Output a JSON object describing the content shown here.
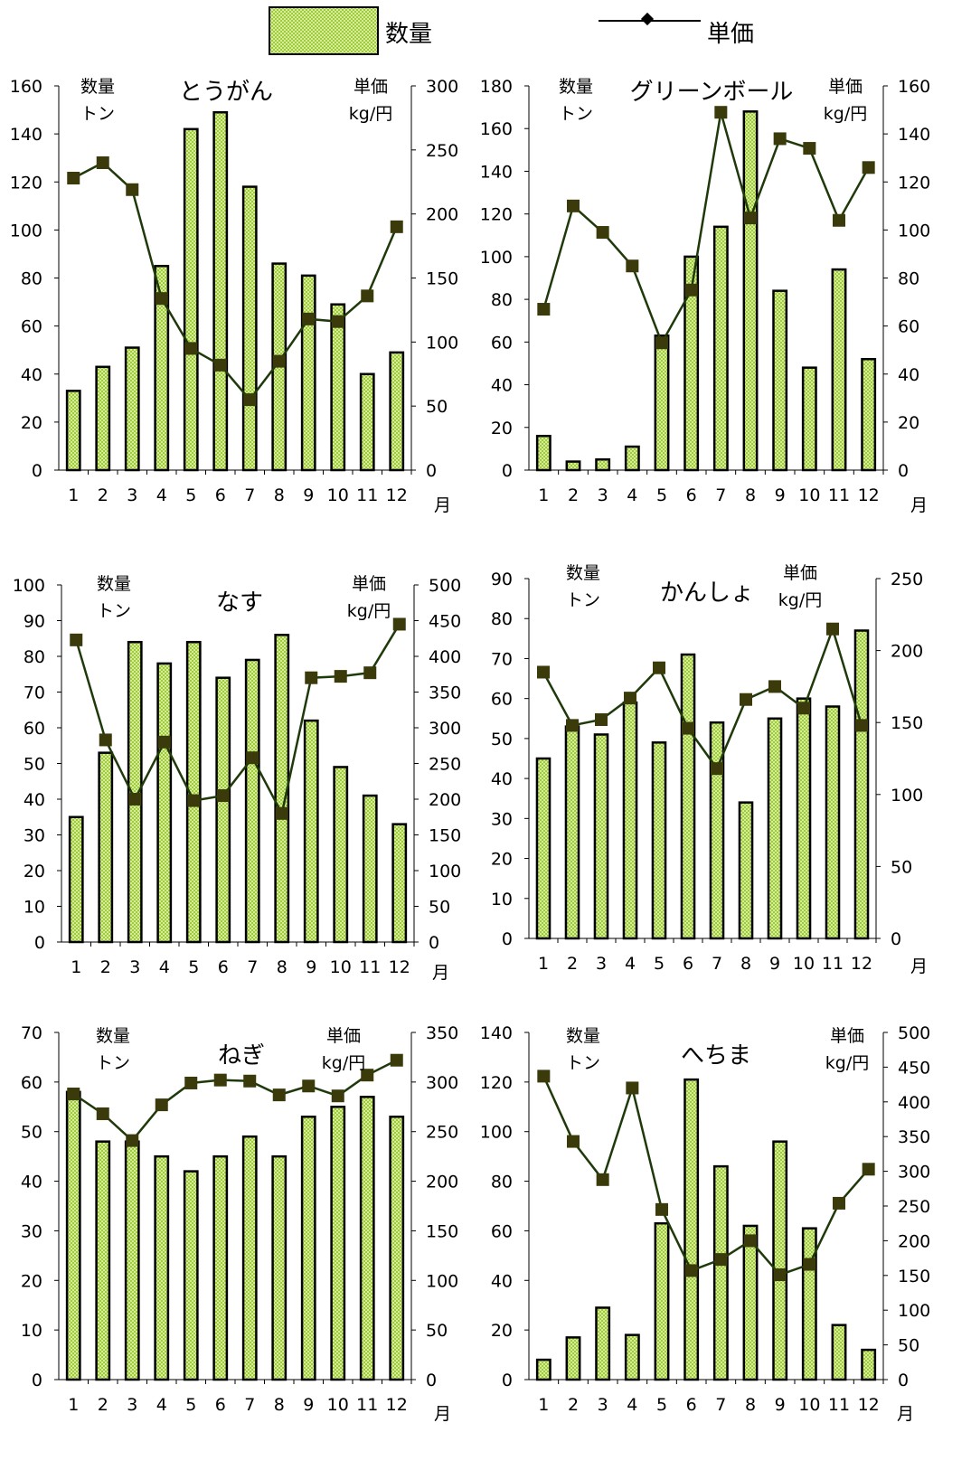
{
  "legend": {
    "bar_label": "数量",
    "line_label": "単価"
  },
  "colors": {
    "bar_fill": "#d8ec9a",
    "bar_dot": "#9ccc3c",
    "bar_stroke": "#000000",
    "line": "#1f3a0a",
    "marker": "#3a3a0a"
  },
  "chart_data": [
    {
      "type": "bar",
      "title": "とうがん",
      "left_label": [
        "数量",
        "トン"
      ],
      "right_label": [
        "単価",
        "kg/円"
      ],
      "x_unit": "月",
      "categories": [
        "1",
        "2",
        "3",
        "4",
        "5",
        "6",
        "7",
        "8",
        "9",
        "10",
        "11",
        "12"
      ],
      "ylim_left": [
        0,
        160
      ],
      "ystep_left": 20,
      "ylim_right": [
        0,
        300
      ],
      "ystep_right": 50,
      "series": [
        {
          "name": "数量",
          "axis": "left",
          "values": [
            33,
            43,
            51,
            85,
            142,
            149,
            118,
            86,
            81,
            69,
            40,
            49
          ]
        },
        {
          "name": "単価",
          "axis": "right",
          "type": "line",
          "values": [
            228,
            240,
            219,
            134,
            95,
            82,
            55,
            85,
            118,
            116,
            136,
            190
          ]
        }
      ]
    },
    {
      "type": "bar",
      "title": "グリーンボール",
      "left_label": [
        "数量",
        "トン"
      ],
      "right_label": [
        "単価",
        "kg/円"
      ],
      "x_unit": "月",
      "categories": [
        "1",
        "2",
        "3",
        "4",
        "5",
        "6",
        "7",
        "8",
        "9",
        "10",
        "11",
        "12"
      ],
      "ylim_left": [
        0,
        180
      ],
      "ystep_left": 20,
      "ylim_right": [
        0,
        160
      ],
      "ystep_right": 20,
      "series": [
        {
          "name": "数量",
          "axis": "left",
          "values": [
            16,
            4,
            5,
            11,
            63,
            100,
            114,
            168,
            84,
            48,
            94,
            52
          ]
        },
        {
          "name": "単価",
          "axis": "right",
          "type": "line",
          "values": [
            67,
            110,
            99,
            85,
            53,
            75,
            149,
            105,
            138,
            134,
            104,
            126
          ]
        }
      ]
    },
    {
      "type": "bar",
      "title": "なす",
      "left_label": [
        "数量",
        "トン"
      ],
      "right_label": [
        "単価",
        "kg/円"
      ],
      "x_unit": "月",
      "categories": [
        "1",
        "2",
        "3",
        "4",
        "5",
        "6",
        "7",
        "8",
        "9",
        "10",
        "11",
        "12"
      ],
      "ylim_left": [
        0,
        100
      ],
      "ystep_left": 10,
      "ylim_right": [
        0,
        500
      ],
      "ystep_right": 50,
      "series": [
        {
          "name": "数量",
          "axis": "left",
          "values": [
            35,
            53,
            84,
            78,
            84,
            74,
            79,
            86,
            62,
            49,
            41,
            33
          ]
        },
        {
          "name": "単価",
          "axis": "right",
          "type": "line",
          "values": [
            423,
            283,
            200,
            280,
            198,
            205,
            258,
            180,
            370,
            372,
            377,
            445
          ]
        }
      ]
    },
    {
      "type": "bar",
      "title": "かんしょ",
      "left_label": [
        "数量",
        "トン"
      ],
      "right_label": [
        "単価",
        "kg/円"
      ],
      "x_unit": "月",
      "categories": [
        "1",
        "2",
        "3",
        "4",
        "5",
        "6",
        "7",
        "8",
        "9",
        "10",
        "11",
        "12"
      ],
      "ylim_left": [
        0,
        90
      ],
      "ystep_left": 10,
      "ylim_right": [
        0,
        250
      ],
      "ystep_right": 50,
      "series": [
        {
          "name": "数量",
          "axis": "left",
          "values": [
            45,
            53,
            51,
            59,
            49,
            71,
            54,
            34,
            55,
            60,
            58,
            77
          ]
        },
        {
          "name": "単価",
          "axis": "right",
          "type": "line",
          "values": [
            185,
            148,
            152,
            167,
            188,
            146,
            118,
            166,
            175,
            160,
            215,
            148
          ]
        }
      ]
    },
    {
      "type": "bar",
      "title": "ねぎ",
      "left_label": [
        "数量",
        "トン"
      ],
      "right_label": [
        "単価",
        "kg/円"
      ],
      "x_unit": "月",
      "categories": [
        "1",
        "2",
        "3",
        "4",
        "5",
        "6",
        "7",
        "8",
        "9",
        "10",
        "11",
        "12"
      ],
      "ylim_left": [
        0,
        70
      ],
      "ystep_left": 10,
      "ylim_right": [
        0,
        350
      ],
      "ystep_right": 50,
      "series": [
        {
          "name": "数量",
          "axis": "left",
          "values": [
            58,
            48,
            48,
            45,
            42,
            45,
            49,
            45,
            53,
            55,
            57,
            53
          ]
        },
        {
          "name": "単価",
          "axis": "right",
          "type": "line",
          "values": [
            288,
            268,
            241,
            277,
            299,
            302,
            301,
            287,
            296,
            286,
            307,
            322
          ]
        }
      ]
    },
    {
      "type": "bar",
      "title": "へちま",
      "left_label": [
        "数量",
        "トン"
      ],
      "right_label": [
        "単価",
        "kg/円"
      ],
      "x_unit": "月",
      "categories": [
        "1",
        "2",
        "3",
        "4",
        "5",
        "6",
        "7",
        "8",
        "9",
        "10",
        "11",
        "12"
      ],
      "ylim_left": [
        0,
        140
      ],
      "ystep_left": 20,
      "ylim_right": [
        0,
        500
      ],
      "ystep_right": 50,
      "series": [
        {
          "name": "数量",
          "axis": "left",
          "values": [
            8,
            17,
            29,
            18,
            63,
            121,
            86,
            62,
            96,
            61,
            22,
            12
          ]
        },
        {
          "name": "単価",
          "axis": "right",
          "type": "line",
          "values": [
            437,
            343,
            288,
            420,
            245,
            157,
            173,
            200,
            151,
            166,
            254,
            303
          ]
        }
      ]
    }
  ]
}
